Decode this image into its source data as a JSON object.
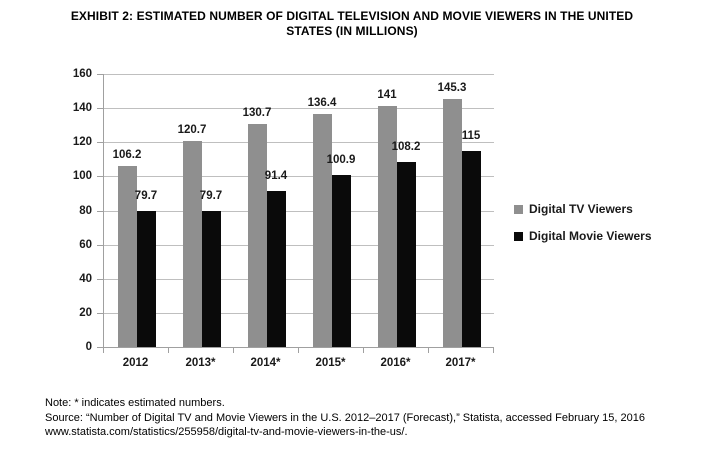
{
  "title_lines": [
    "EXHIBIT 2: ESTIMATED NUMBER OF DIGITAL TELEVISION AND MOVIE VIEWERS IN THE UNITED",
    "STATES (IN MILLIONS)"
  ],
  "chart_data": {
    "type": "bar",
    "title": "EXHIBIT 2: ESTIMATED NUMBER OF DIGITAL TELEVISION AND MOVIE VIEWERS IN THE UNITED STATES (IN MILLIONS)",
    "categories": [
      "2012",
      "2013*",
      "2014*",
      "2015*",
      "2016*",
      "2017*"
    ],
    "series": [
      {
        "name": "Digital TV Viewers",
        "color": "#8f8f8f",
        "values": [
          106.2,
          120.7,
          130.7,
          136.4,
          141,
          145.3
        ]
      },
      {
        "name": "Digital Movie Viewers",
        "color": "#0a0a0a",
        "values": [
          79.7,
          79.7,
          91.4,
          100.9,
          108.2,
          115
        ]
      }
    ],
    "xlabel": "",
    "ylabel": "",
    "ylim": [
      0,
      160
    ],
    "yticks": [
      0,
      20,
      40,
      60,
      80,
      100,
      120,
      140,
      160
    ],
    "grid": true,
    "legend_position": "right"
  },
  "notes": {
    "note": "Note: * indicates estimated numbers.",
    "source": "Source: “Number of Digital TV and Movie Viewers in the U.S. 2012–2017 (Forecast),” Statista, accessed February 15, 2016",
    "url": "www.statista.com/statistics/255958/digital-tv-and-movie-viewers-in-the-us/."
  },
  "colors": {
    "tv_bar": "#8f8f8f",
    "movie_bar": "#0a0a0a",
    "gridline": "#bfbfbf",
    "axis": "#a0a0a0",
    "label_text": "#1a1a1a"
  }
}
